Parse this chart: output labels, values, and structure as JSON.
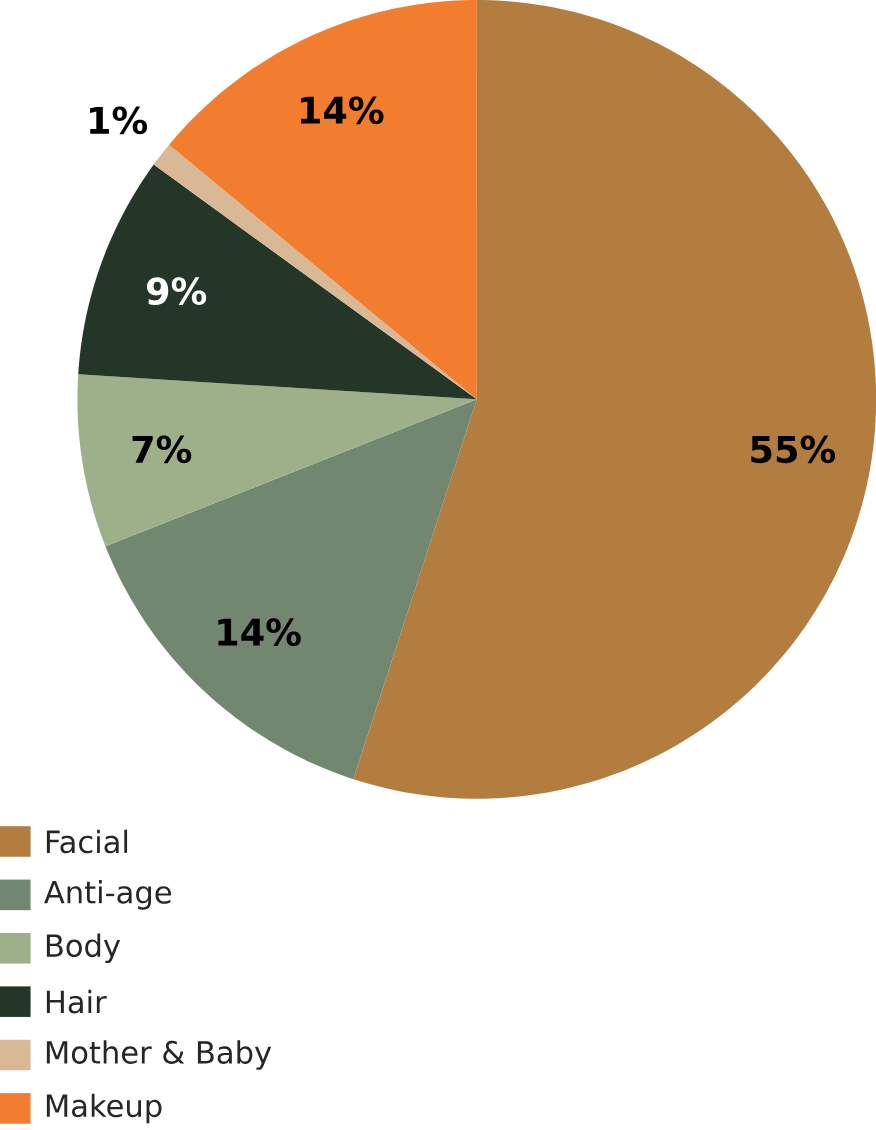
{
  "chart_data": {
    "type": "pie",
    "categories": [
      "Facial",
      "Anti-age",
      "Body",
      "Hair",
      "Mother & Baby",
      "Makeup"
    ],
    "values": [
      55,
      14,
      7,
      9,
      1,
      14
    ],
    "value_labels": [
      "55%",
      "14%",
      "7%",
      "9%",
      "1%",
      "14%"
    ],
    "colors": [
      "#b37d40",
      "#728770",
      "#9eb08a",
      "#243628",
      "#d9b896",
      "#f27d2e"
    ],
    "legend": "bottom left"
  }
}
